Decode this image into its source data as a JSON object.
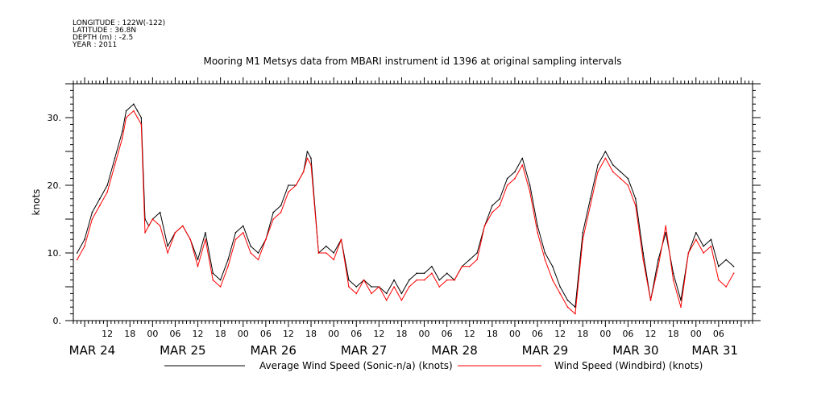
{
  "header": {
    "meta_lines": [
      "LONGITUDE : 122W(-122)",
      "LATITUDE : 36.8N",
      "DEPTH (m) : -2.5",
      "YEAR : 2011"
    ],
    "title": "Mooring M1 Metsys data from MBARI instrument id 1396 at original sampling intervals"
  },
  "chart_data": {
    "type": "line",
    "title": "Mooring M1 Metsys data from MBARI instrument id 1396 at original sampling intervals",
    "ylabel": "knots",
    "xlabel": "",
    "ylim": [
      0,
      35
    ],
    "xlim": [
      "2011-03-24T03:00",
      "2011-03-31T15:00"
    ],
    "y_ticks": [
      0,
      10,
      20,
      30
    ],
    "y_tick_labels": [
      "0.",
      "10.",
      "20.",
      "30."
    ],
    "x_hour_ticks": [
      {
        "t": "2011-03-24T12:00",
        "label": "12"
      },
      {
        "t": "2011-03-24T18:00",
        "label": "18"
      },
      {
        "t": "2011-03-25T00:00",
        "label": "00"
      },
      {
        "t": "2011-03-25T06:00",
        "label": "06"
      },
      {
        "t": "2011-03-25T12:00",
        "label": "12"
      },
      {
        "t": "2011-03-25T18:00",
        "label": "18"
      },
      {
        "t": "2011-03-26T00:00",
        "label": "00"
      },
      {
        "t": "2011-03-26T06:00",
        "label": "06"
      },
      {
        "t": "2011-03-26T12:00",
        "label": "12"
      },
      {
        "t": "2011-03-26T18:00",
        "label": "18"
      },
      {
        "t": "2011-03-27T00:00",
        "label": "00"
      },
      {
        "t": "2011-03-27T06:00",
        "label": "06"
      },
      {
        "t": "2011-03-27T12:00",
        "label": "12"
      },
      {
        "t": "2011-03-27T18:00",
        "label": "18"
      },
      {
        "t": "2011-03-28T00:00",
        "label": "00"
      },
      {
        "t": "2011-03-28T06:00",
        "label": "06"
      },
      {
        "t": "2011-03-28T12:00",
        "label": "12"
      },
      {
        "t": "2011-03-28T18:00",
        "label": "18"
      },
      {
        "t": "2011-03-29T00:00",
        "label": "00"
      },
      {
        "t": "2011-03-29T06:00",
        "label": "06"
      },
      {
        "t": "2011-03-29T12:00",
        "label": "12"
      },
      {
        "t": "2011-03-29T18:00",
        "label": "18"
      },
      {
        "t": "2011-03-30T00:00",
        "label": "00"
      },
      {
        "t": "2011-03-30T06:00",
        "label": "06"
      },
      {
        "t": "2011-03-30T12:00",
        "label": "12"
      },
      {
        "t": "2011-03-30T18:00",
        "label": "18"
      },
      {
        "t": "2011-03-31T00:00",
        "label": "00"
      },
      {
        "t": "2011-03-31T06:00",
        "label": "06"
      }
    ],
    "x_day_labels": [
      {
        "t": "2011-03-24T08:00",
        "label": "MAR 24"
      },
      {
        "t": "2011-03-25T08:00",
        "label": "MAR 25"
      },
      {
        "t": "2011-03-26T08:00",
        "label": "MAR 26"
      },
      {
        "t": "2011-03-27T08:00",
        "label": "MAR 27"
      },
      {
        "t": "2011-03-28T08:00",
        "label": "MAR 28"
      },
      {
        "t": "2011-03-29T08:00",
        "label": "MAR 29"
      },
      {
        "t": "2011-03-30T08:00",
        "label": "MAR 30"
      },
      {
        "t": "2011-03-31T05:00",
        "label": "MAR 31"
      }
    ],
    "series": [
      {
        "name": "Average Wind Speed (Sonic-n/a) (knots)",
        "color": "#000000",
        "x": [
          "2011-03-24T04:00",
          "2011-03-24T06:00",
          "2011-03-24T08:00",
          "2011-03-24T10:00",
          "2011-03-24T12:00",
          "2011-03-24T14:00",
          "2011-03-24T16:00",
          "2011-03-24T17:00",
          "2011-03-24T19:00",
          "2011-03-24T20:00",
          "2011-03-24T21:00",
          "2011-03-24T22:00",
          "2011-03-24T23:00",
          "2011-03-25T00:00",
          "2011-03-25T02:00",
          "2011-03-25T04:00",
          "2011-03-25T06:00",
          "2011-03-25T08:00",
          "2011-03-25T10:00",
          "2011-03-25T12:00",
          "2011-03-25T14:00",
          "2011-03-25T16:00",
          "2011-03-25T18:00",
          "2011-03-25T20:00",
          "2011-03-25T22:00",
          "2011-03-26T00:00",
          "2011-03-26T02:00",
          "2011-03-26T04:00",
          "2011-03-26T06:00",
          "2011-03-26T08:00",
          "2011-03-26T10:00",
          "2011-03-26T12:00",
          "2011-03-26T14:00",
          "2011-03-26T16:00",
          "2011-03-26T17:00",
          "2011-03-26T18:00",
          "2011-03-26T20:00",
          "2011-03-26T22:00",
          "2011-03-27T00:00",
          "2011-03-27T02:00",
          "2011-03-27T04:00",
          "2011-03-27T06:00",
          "2011-03-27T08:00",
          "2011-03-27T10:00",
          "2011-03-27T12:00",
          "2011-03-27T14:00",
          "2011-03-27T16:00",
          "2011-03-27T18:00",
          "2011-03-27T20:00",
          "2011-03-27T22:00",
          "2011-03-28T00:00",
          "2011-03-28T02:00",
          "2011-03-28T04:00",
          "2011-03-28T06:00",
          "2011-03-28T08:00",
          "2011-03-28T10:00",
          "2011-03-28T12:00",
          "2011-03-28T14:00",
          "2011-03-28T16:00",
          "2011-03-28T18:00",
          "2011-03-28T20:00",
          "2011-03-28T22:00",
          "2011-03-29T00:00",
          "2011-03-29T02:00",
          "2011-03-29T04:00",
          "2011-03-29T06:00",
          "2011-03-29T08:00",
          "2011-03-29T10:00",
          "2011-03-29T12:00",
          "2011-03-29T14:00",
          "2011-03-29T16:00",
          "2011-03-29T18:00",
          "2011-03-29T20:00",
          "2011-03-29T22:00",
          "2011-03-30T00:00",
          "2011-03-30T02:00",
          "2011-03-30T04:00",
          "2011-03-30T06:00",
          "2011-03-30T08:00",
          "2011-03-30T10:00",
          "2011-03-30T12:00",
          "2011-03-30T14:00",
          "2011-03-30T16:00",
          "2011-03-30T18:00",
          "2011-03-30T20:00",
          "2011-03-30T22:00",
          "2011-03-31T00:00",
          "2011-03-31T02:00",
          "2011-03-31T04:00",
          "2011-03-31T06:00",
          "2011-03-31T08:00",
          "2011-03-31T10:00"
        ],
        "y": [
          10,
          12,
          16,
          18,
          20,
          24,
          28,
          31,
          32,
          31,
          30,
          15,
          14,
          15,
          16,
          11,
          13,
          14,
          12,
          9,
          13,
          7,
          6,
          9,
          13,
          14,
          11,
          10,
          12,
          16,
          17,
          20,
          20,
          22,
          25,
          24,
          10,
          11,
          10,
          12,
          6,
          5,
          6,
          5,
          5,
          4,
          6,
          4,
          6,
          7,
          7,
          8,
          6,
          7,
          6,
          8,
          9,
          10,
          14,
          17,
          18,
          21,
          22,
          24,
          20,
          14,
          10,
          8,
          5,
          3,
          2,
          13,
          18,
          23,
          25,
          23,
          22,
          21,
          18,
          10,
          3,
          9,
          13,
          7,
          3,
          10,
          13,
          11,
          12,
          8,
          9,
          8
        ]
      },
      {
        "name": "Wind Speed (Windbird) (knots)",
        "color": "#ff0000",
        "x": [
          "2011-03-24T04:00",
          "2011-03-24T06:00",
          "2011-03-24T08:00",
          "2011-03-24T10:00",
          "2011-03-24T12:00",
          "2011-03-24T14:00",
          "2011-03-24T16:00",
          "2011-03-24T17:00",
          "2011-03-24T19:00",
          "2011-03-24T20:00",
          "2011-03-24T21:00",
          "2011-03-24T22:00",
          "2011-03-24T23:00",
          "2011-03-25T00:00",
          "2011-03-25T02:00",
          "2011-03-25T04:00",
          "2011-03-25T06:00",
          "2011-03-25T08:00",
          "2011-03-25T10:00",
          "2011-03-25T12:00",
          "2011-03-25T14:00",
          "2011-03-25T16:00",
          "2011-03-25T18:00",
          "2011-03-25T20:00",
          "2011-03-25T22:00",
          "2011-03-26T00:00",
          "2011-03-26T02:00",
          "2011-03-26T04:00",
          "2011-03-26T06:00",
          "2011-03-26T08:00",
          "2011-03-26T10:00",
          "2011-03-26T12:00",
          "2011-03-26T14:00",
          "2011-03-26T16:00",
          "2011-03-26T17:00",
          "2011-03-26T18:00",
          "2011-03-26T20:00",
          "2011-03-26T22:00",
          "2011-03-27T00:00",
          "2011-03-27T02:00",
          "2011-03-27T04:00",
          "2011-03-27T06:00",
          "2011-03-27T08:00",
          "2011-03-27T10:00",
          "2011-03-27T12:00",
          "2011-03-27T14:00",
          "2011-03-27T16:00",
          "2011-03-27T18:00",
          "2011-03-27T20:00",
          "2011-03-27T22:00",
          "2011-03-28T00:00",
          "2011-03-28T02:00",
          "2011-03-28T04:00",
          "2011-03-28T06:00",
          "2011-03-28T08:00",
          "2011-03-28T10:00",
          "2011-03-28T12:00",
          "2011-03-28T14:00",
          "2011-03-28T16:00",
          "2011-03-28T18:00",
          "2011-03-28T20:00",
          "2011-03-28T22:00",
          "2011-03-29T00:00",
          "2011-03-29T02:00",
          "2011-03-29T04:00",
          "2011-03-29T06:00",
          "2011-03-29T08:00",
          "2011-03-29T10:00",
          "2011-03-29T12:00",
          "2011-03-29T14:00",
          "2011-03-29T16:00",
          "2011-03-29T18:00",
          "2011-03-29T20:00",
          "2011-03-29T22:00",
          "2011-03-30T00:00",
          "2011-03-30T02:00",
          "2011-03-30T04:00",
          "2011-03-30T06:00",
          "2011-03-30T08:00",
          "2011-03-30T10:00",
          "2011-03-30T12:00",
          "2011-03-30T14:00",
          "2011-03-30T16:00",
          "2011-03-30T18:00",
          "2011-03-30T20:00",
          "2011-03-30T22:00",
          "2011-03-31T00:00",
          "2011-03-31T02:00",
          "2011-03-31T04:00",
          "2011-03-31T06:00",
          "2011-03-31T08:00",
          "2011-03-31T10:00"
        ],
        "y": [
          9,
          11,
          15,
          17,
          19,
          23,
          27,
          30,
          31,
          30,
          29,
          13,
          14,
          15,
          14,
          10,
          13,
          14,
          12,
          8,
          12,
          6,
          5,
          8,
          12,
          13,
          10,
          9,
          12,
          15,
          16,
          19,
          20,
          22,
          24,
          23,
          10,
          10,
          9,
          12,
          5,
          4,
          6,
          4,
          5,
          3,
          5,
          3,
          5,
          6,
          6,
          7,
          5,
          6,
          6,
          8,
          8,
          9,
          14,
          16,
          17,
          20,
          21,
          23,
          19,
          13,
          9,
          6,
          4,
          2,
          1,
          12,
          17,
          22,
          24,
          22,
          21,
          20,
          17,
          9,
          3,
          8,
          14,
          6,
          2,
          10,
          12,
          10,
          11,
          6,
          5,
          7
        ]
      }
    ],
    "legend_placement": "bottom",
    "grid": false
  }
}
